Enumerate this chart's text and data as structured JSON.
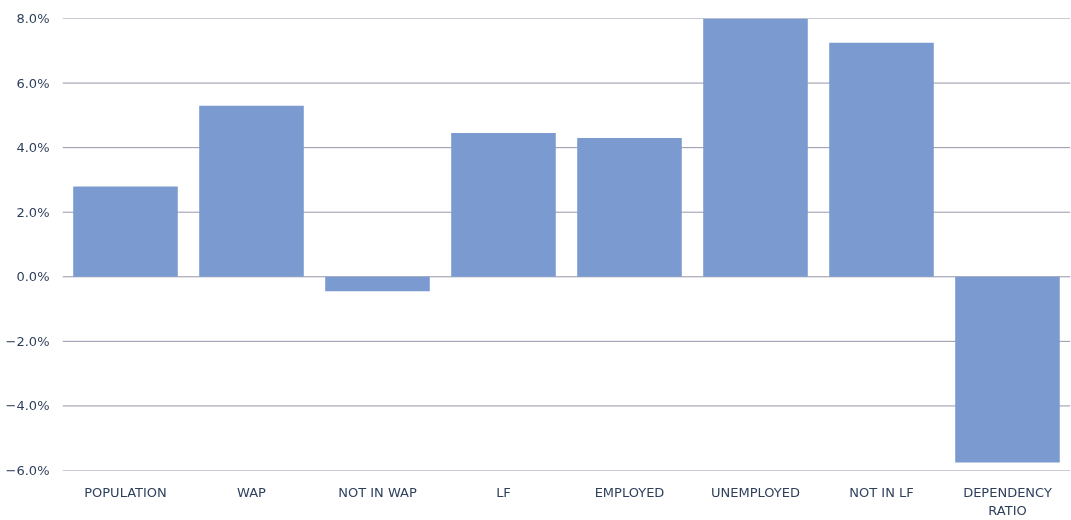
{
  "chart_data": {
    "type": "bar",
    "categories": [
      "POPULATION",
      "WAP",
      "NOT IN WAP",
      "LF",
      "EMPLOYED",
      "UNEMPLOYED",
      "NOT IN LF",
      "DEPENDENCY RATIO"
    ],
    "values": [
      2.8,
      5.3,
      -0.45,
      4.45,
      4.3,
      8.0,
      7.25,
      -5.75
    ],
    "color": "#7b9bd0",
    "ylim": [
      -6,
      8
    ],
    "yticks": [
      {
        "value": -6,
        "label": "−6.0%"
      },
      {
        "value": -4,
        "label": "−4.0%"
      },
      {
        "value": -2,
        "label": "−2.0%"
      },
      {
        "value": 0,
        "label": "0.0%"
      },
      {
        "value": 2,
        "label": "2.0%"
      },
      {
        "value": 4,
        "label": "4.0%"
      },
      {
        "value": 6,
        "label": "6.0%"
      },
      {
        "value": 8,
        "label": "8.0%"
      }
    ],
    "grid": "y"
  }
}
